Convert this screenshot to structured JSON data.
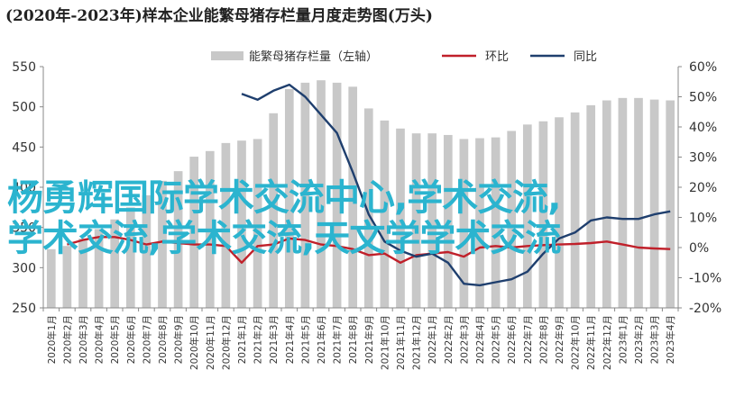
{
  "title": "(2020年-2023年)样本企业能繁母猪存栏量月度走势图(万头)",
  "overlay_text": {
    "line1": "杨勇辉国际学术交流中心,学术交流,",
    "line2": "学术交流,学术交流,天文学学术交流"
  },
  "colors": {
    "bar": "#c8c8c8",
    "line_huanbi": "#c0202a",
    "line_tongbi": "#1f3f6e",
    "overlay": "#2bb4cf"
  },
  "chart_data": {
    "type": "bar",
    "categories": [
      "2020年1月",
      "2020年2月",
      "2020年3月",
      "2020年4月",
      "2020年5月",
      "2020年6月",
      "2020年7月",
      "2020年8月",
      "2020年9月",
      "2020年10月",
      "2020年11月",
      "2020年12月",
      "2021年1月",
      "2021年2月",
      "2021年3月",
      "2021年4月",
      "2021年5月",
      "2021年6月",
      "2021年7月",
      "2021年8月",
      "2021年9月",
      "2021年10月",
      "2021年11月",
      "2021年12月",
      "2022年1月",
      "2022年2月",
      "2022年3月",
      "2022年4月",
      "2022年5月",
      "2022年6月",
      "2022年7月",
      "2022年8月",
      "2022年9月",
      "2022年10月",
      "2022年11月",
      "2022年12月",
      "2023年1月",
      "2023年2月",
      "2023年3月",
      "2023年4月"
    ],
    "series": [
      {
        "name": "能繁母猪存栏量（左轴）",
        "axis": "left",
        "type": "bar",
        "values": [
          323,
          327,
          336,
          348,
          360,
          375,
          390,
          408,
          420,
          438,
          445,
          455,
          458,
          460,
          492,
          522,
          530,
          533,
          530,
          525,
          498,
          483,
          473,
          467,
          467,
          465,
          460,
          461,
          462,
          470,
          478,
          482,
          487,
          493,
          502,
          508,
          511,
          511,
          509,
          508
        ]
      },
      {
        "name": "环比",
        "axis": "right",
        "type": "line",
        "values": [
          null,
          1.0,
          2.5,
          3.5,
          3.5,
          2.5,
          1.0,
          2.0,
          1.5,
          1.0,
          1.0,
          0.5,
          -5.0,
          0.5,
          1.0,
          3.0,
          2.5,
          1.0,
          0.5,
          -0.5,
          -2.5,
          -2.0,
          -5.0,
          -2.5,
          -2.0,
          -1.5,
          -3.0,
          0.0,
          0.5,
          0.0,
          0.5,
          0.8,
          1.0,
          1.2,
          1.5,
          2.0,
          1.0,
          0.0,
          -0.3,
          -0.5
        ]
      },
      {
        "name": "同比",
        "axis": "right",
        "type": "line",
        "values": [
          null,
          null,
          null,
          null,
          null,
          null,
          null,
          null,
          null,
          null,
          null,
          null,
          51,
          49,
          52,
          54,
          50,
          44,
          38,
          25,
          11,
          2,
          -1,
          -3,
          -2,
          -5,
          -12,
          -12.5,
          -11.5,
          -10.5,
          -8,
          -2,
          3,
          5,
          9,
          10,
          9.5,
          9.5,
          11,
          12
        ]
      }
    ],
    "left_axis": {
      "ylim": [
        250,
        550
      ],
      "ticks": [
        "250",
        "300",
        "350",
        "400",
        "450",
        "500",
        "550"
      ]
    },
    "right_axis": {
      "ylim": [
        -20,
        60
      ],
      "ticks": [
        "-20%",
        "-10%",
        "0%",
        "10%",
        "20%",
        "30%",
        "40%",
        "50%",
        "60%"
      ]
    },
    "legend": [
      "能繁母猪存栏量（左轴）",
      "环比",
      "同比"
    ],
    "legend_position": "top-center",
    "grid": false
  }
}
